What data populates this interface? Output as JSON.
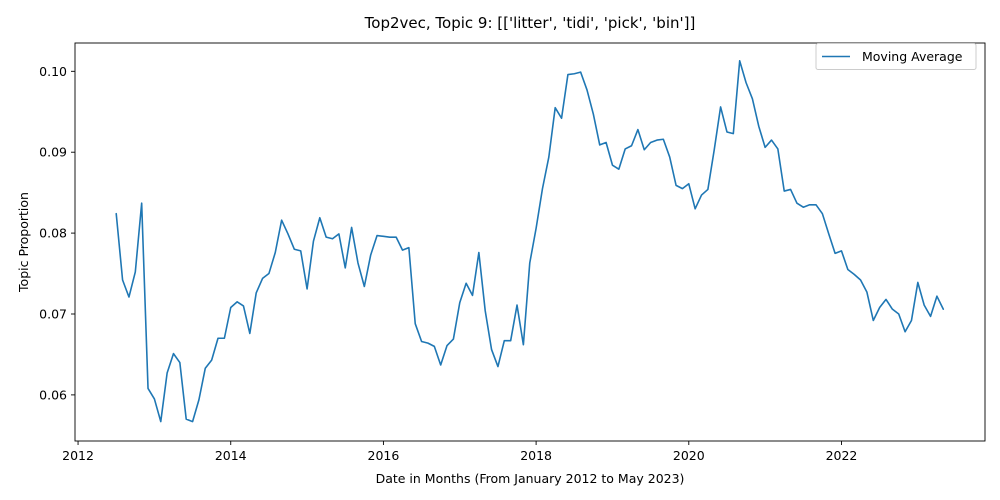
{
  "chart_data": {
    "type": "line",
    "title": "Top2vec, Topic 9: [['litter', 'tidi', 'pick', 'bin']]",
    "xlabel": "Date in Months (From January 2012 to May 2023)",
    "ylabel": "Topic Proportion",
    "x_ticks": [
      2012,
      2014,
      2016,
      2018,
      2020,
      2022
    ],
    "y_ticks": [
      0.06,
      0.07,
      0.08,
      0.09,
      0.1
    ],
    "y_tick_labels": [
      "0.06",
      "0.07",
      "0.08",
      "0.09",
      "0.10"
    ],
    "xlim": [
      2011.96,
      2023.88
    ],
    "ylim": [
      0.0543,
      0.1035
    ],
    "grid": false,
    "legend_position": "upper right",
    "series": [
      {
        "name": "Moving Average",
        "color": "#1f77b4",
        "x": [
          "2012-07",
          "2012-08",
          "2012-09",
          "2012-10",
          "2012-11",
          "2012-12",
          "2013-01",
          "2013-02",
          "2013-03",
          "2013-04",
          "2013-05",
          "2013-06",
          "2013-07",
          "2013-08",
          "2013-09",
          "2013-10",
          "2013-11",
          "2013-12",
          "2014-01",
          "2014-02",
          "2014-03",
          "2014-04",
          "2014-05",
          "2014-06",
          "2014-07",
          "2014-08",
          "2014-09",
          "2014-10",
          "2014-11",
          "2014-12",
          "2015-01",
          "2015-02",
          "2015-03",
          "2015-04",
          "2015-05",
          "2015-06",
          "2015-07",
          "2015-08",
          "2015-09",
          "2015-10",
          "2015-11",
          "2015-12",
          "2016-01",
          "2016-02",
          "2016-03",
          "2016-04",
          "2016-05",
          "2016-06",
          "2016-07",
          "2016-08",
          "2016-09",
          "2016-10",
          "2016-11",
          "2016-12",
          "2017-01",
          "2017-02",
          "2017-03",
          "2017-04",
          "2017-05",
          "2017-06",
          "2017-07",
          "2017-08",
          "2017-09",
          "2017-10",
          "2017-11",
          "2017-12",
          "2018-01",
          "2018-02",
          "2018-03",
          "2018-04",
          "2018-05",
          "2018-06",
          "2018-07",
          "2018-08",
          "2018-09",
          "2018-10",
          "2018-11",
          "2018-12",
          "2019-01",
          "2019-02",
          "2019-03",
          "2019-04",
          "2019-05",
          "2019-06",
          "2019-07",
          "2019-08",
          "2019-09",
          "2019-10",
          "2019-11",
          "2019-12",
          "2020-01",
          "2020-02",
          "2020-03",
          "2020-04",
          "2020-05",
          "2020-06",
          "2020-07",
          "2020-08",
          "2020-09",
          "2020-10",
          "2020-11",
          "2020-12",
          "2021-01",
          "2021-02",
          "2021-03",
          "2021-04",
          "2021-05",
          "2021-06",
          "2021-07",
          "2021-08",
          "2021-09",
          "2021-10",
          "2021-11",
          "2021-12",
          "2022-01",
          "2022-02",
          "2022-03",
          "2022-04",
          "2022-05",
          "2022-06",
          "2022-07",
          "2022-08",
          "2022-09",
          "2022-10",
          "2022-11",
          "2022-12",
          "2023-01",
          "2023-02",
          "2023-03",
          "2023-04",
          "2023-05"
        ],
        "values": [
          0.0824,
          0.0742,
          0.0721,
          0.0752,
          0.0837,
          0.0608,
          0.0595,
          0.0567,
          0.0627,
          0.0651,
          0.064,
          0.057,
          0.0567,
          0.0594,
          0.0633,
          0.0643,
          0.067,
          0.067,
          0.0708,
          0.0715,
          0.071,
          0.0676,
          0.0726,
          0.0744,
          0.075,
          0.0776,
          0.0816,
          0.0799,
          0.078,
          0.0778,
          0.0731,
          0.079,
          0.0819,
          0.0795,
          0.0793,
          0.0799,
          0.0757,
          0.0807,
          0.0763,
          0.0734,
          0.0773,
          0.0797,
          0.0796,
          0.0795,
          0.0795,
          0.0779,
          0.0782,
          0.0688,
          0.0666,
          0.0664,
          0.066,
          0.0637,
          0.0661,
          0.0669,
          0.0714,
          0.0738,
          0.0723,
          0.0776,
          0.0704,
          0.0656,
          0.0635,
          0.0667,
          0.0667,
          0.0711,
          0.0662,
          0.0763,
          0.0806,
          0.0855,
          0.0894,
          0.0955,
          0.0942,
          0.0996,
          0.0997,
          0.0999,
          0.0977,
          0.0947,
          0.0909,
          0.0912,
          0.0884,
          0.0879,
          0.0904,
          0.0908,
          0.0928,
          0.0903,
          0.0912,
          0.0915,
          0.0916,
          0.0894,
          0.0859,
          0.0855,
          0.0861,
          0.083,
          0.0847,
          0.0854,
          0.0903,
          0.0956,
          0.0925,
          0.0923,
          0.1013,
          0.0986,
          0.0966,
          0.0932,
          0.0906,
          0.0915,
          0.0904,
          0.0852,
          0.0854,
          0.0837,
          0.0832,
          0.0835,
          0.0835,
          0.0824,
          0.0799,
          0.0775,
          0.0778,
          0.0755,
          0.0749,
          0.0742,
          0.0727,
          0.0692,
          0.0708,
          0.0718,
          0.0706,
          0.07,
          0.0678,
          0.0692,
          0.0739,
          0.0711,
          0.0697,
          0.0722,
          0.0706
        ]
      }
    ]
  }
}
